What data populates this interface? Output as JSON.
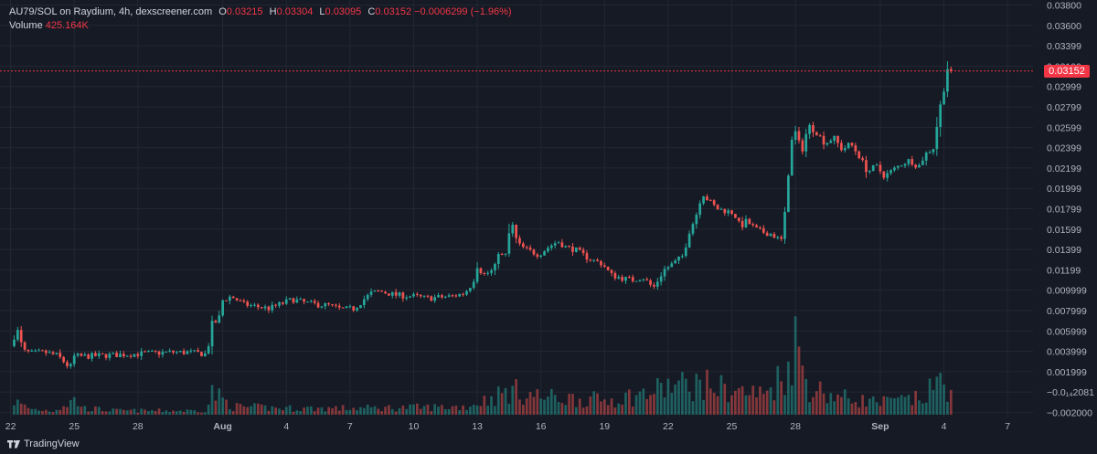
{
  "header": {
    "symbol": "AU79/SOL on Raydium, 4h, dexscreener.com",
    "ohlc": {
      "o_label": "O",
      "o": "0.03215",
      "h_label": "H",
      "h": "0.03304",
      "l_label": "L",
      "l": "0.03095",
      "c_label": "C",
      "c": "0.03152",
      "change": "−0.0006299 (−1.96%)"
    },
    "volume_label": "Volume",
    "volume_value": "425.164K"
  },
  "price_tag": "0.03152",
  "footer": {
    "logo_text": "TradingView",
    "logo_icon": "tradingview-logo-icon"
  },
  "colors": {
    "up": "#26a69a",
    "down": "#ef5350",
    "background": "#161a25",
    "grid": "#232733",
    "last_price": "#f23645"
  },
  "chart_data": {
    "type": "candlestick",
    "interval": "4h",
    "last_price": 0.03152,
    "ylim": [
      -0.0025,
      0.0385
    ],
    "y_tick_labels": [
      "0.03800",
      "0.03600",
      "0.03399",
      "0.03199",
      "0.02999",
      "0.02799",
      "0.02599",
      "0.02399",
      "0.02199",
      "0.01999",
      "0.01799",
      "0.01599",
      "0.01399",
      "0.01199",
      "0.009999",
      "0.007999",
      "0.005999",
      "0.003999",
      "0.001999",
      "−0.0₁₄2081",
      "−0.002000"
    ],
    "y_tick_values": [
      0.038,
      0.036,
      0.034,
      0.032,
      0.03,
      0.028,
      0.026,
      0.024,
      0.022,
      0.02,
      0.018,
      0.016,
      0.014,
      0.012,
      0.01,
      0.008,
      0.006,
      0.004,
      0.002,
      0.0,
      -0.002
    ],
    "x_ticks": [
      {
        "label": "22",
        "day": 0
      },
      {
        "label": "25",
        "day": 3
      },
      {
        "label": "28",
        "day": 6
      },
      {
        "label": "Aug",
        "day": 10
      },
      {
        "label": "4",
        "day": 13
      },
      {
        "label": "7",
        "day": 16
      },
      {
        "label": "10",
        "day": 19
      },
      {
        "label": "13",
        "day": 22
      },
      {
        "label": "16",
        "day": 25
      },
      {
        "label": "19",
        "day": 28
      },
      {
        "label": "22",
        "day": 31
      },
      {
        "label": "25",
        "day": 34
      },
      {
        "label": "28",
        "day": 37
      },
      {
        "label": "Sep",
        "day": 41
      },
      {
        "label": "4",
        "day": 44
      },
      {
        "label": "7",
        "day": 47
      }
    ],
    "xlim_days": [
      -0.5,
      48.2
    ],
    "close_path": [
      [
        0.0,
        0.0045
      ],
      [
        0.3,
        0.0062
      ],
      [
        0.6,
        0.004
      ],
      [
        1.0,
        0.0038
      ],
      [
        1.6,
        0.0039
      ],
      [
        2.2,
        0.0036
      ],
      [
        2.6,
        0.0028
      ],
      [
        2.8,
        0.0023
      ],
      [
        3.0,
        0.0035
      ],
      [
        3.5,
        0.0035
      ],
      [
        4.5,
        0.0036
      ],
      [
        5.5,
        0.0037
      ],
      [
        6.5,
        0.0038
      ],
      [
        7.5,
        0.0039
      ],
      [
        8.4,
        0.0039
      ],
      [
        9.3,
        0.0037
      ],
      [
        9.4,
        0.0066
      ],
      [
        9.8,
        0.007
      ],
      [
        10.0,
        0.009
      ],
      [
        10.4,
        0.0094
      ],
      [
        11.0,
        0.0086
      ],
      [
        11.6,
        0.0084
      ],
      [
        12.2,
        0.0082
      ],
      [
        12.8,
        0.0087
      ],
      [
        13.3,
        0.0091
      ],
      [
        13.8,
        0.0088
      ],
      [
        14.4,
        0.0086
      ],
      [
        15.0,
        0.0085
      ],
      [
        15.6,
        0.0081
      ],
      [
        16.2,
        0.0082
      ],
      [
        16.7,
        0.0092
      ],
      [
        17.0,
        0.0097
      ],
      [
        17.4,
        0.0099
      ],
      [
        18.2,
        0.0095
      ],
      [
        19.0,
        0.0094
      ],
      [
        19.6,
        0.0092
      ],
      [
        20.2,
        0.0093
      ],
      [
        20.8,
        0.0094
      ],
      [
        21.4,
        0.0097
      ],
      [
        21.8,
        0.0108
      ],
      [
        22.0,
        0.0124
      ],
      [
        22.3,
        0.0115
      ],
      [
        22.8,
        0.012
      ],
      [
        23.0,
        0.0138
      ],
      [
        23.3,
        0.013
      ],
      [
        23.6,
        0.0168
      ],
      [
        23.9,
        0.0145
      ],
      [
        24.3,
        0.014
      ],
      [
        24.9,
        0.0135
      ],
      [
        25.4,
        0.0143
      ],
      [
        25.8,
        0.0148
      ],
      [
        26.2,
        0.0142
      ],
      [
        26.6,
        0.014
      ],
      [
        27.1,
        0.0133
      ],
      [
        27.5,
        0.0129
      ],
      [
        27.9,
        0.0126
      ],
      [
        28.3,
        0.0115
      ],
      [
        28.8,
        0.0112
      ],
      [
        29.3,
        0.011
      ],
      [
        29.8,
        0.0113
      ],
      [
        30.3,
        0.0102
      ],
      [
        30.8,
        0.012
      ],
      [
        31.3,
        0.0127
      ],
      [
        31.7,
        0.0134
      ],
      [
        32.0,
        0.0158
      ],
      [
        32.3,
        0.0172
      ],
      [
        32.6,
        0.0196
      ],
      [
        32.9,
        0.0188
      ],
      [
        33.3,
        0.018
      ],
      [
        33.7,
        0.0178
      ],
      [
        34.1,
        0.0176
      ],
      [
        34.4,
        0.0162
      ],
      [
        34.7,
        0.0168
      ],
      [
        35.1,
        0.016
      ],
      [
        35.5,
        0.0157
      ],
      [
        35.9,
        0.0155
      ],
      [
        36.2,
        0.015
      ],
      [
        36.4,
        0.0149
      ],
      [
        36.6,
        0.02
      ],
      [
        36.8,
        0.0245
      ],
      [
        37.0,
        0.0255
      ],
      [
        37.3,
        0.0236
      ],
      [
        37.6,
        0.0262
      ],
      [
        38.0,
        0.0255
      ],
      [
        38.4,
        0.0244
      ],
      [
        38.8,
        0.025
      ],
      [
        39.2,
        0.0238
      ],
      [
        39.6,
        0.0244
      ],
      [
        40.0,
        0.0232
      ],
      [
        40.4,
        0.0216
      ],
      [
        40.8,
        0.0222
      ],
      [
        41.2,
        0.0212
      ],
      [
        41.6,
        0.0218
      ],
      [
        42.0,
        0.0224
      ],
      [
        42.4,
        0.0228
      ],
      [
        42.8,
        0.0221
      ],
      [
        43.1,
        0.0233
      ],
      [
        43.5,
        0.024
      ],
      [
        43.8,
        0.0278
      ],
      [
        44.0,
        0.0298
      ],
      [
        44.2,
        0.0322
      ],
      [
        44.4,
        0.0315
      ]
    ],
    "volume_path": [
      [
        0.0,
        0.2
      ],
      [
        0.5,
        0.12
      ],
      [
        1.0,
        0.07
      ],
      [
        2.0,
        0.05
      ],
      [
        3.0,
        0.18
      ],
      [
        3.5,
        0.08
      ],
      [
        5.0,
        0.05
      ],
      [
        7.0,
        0.05
      ],
      [
        9.3,
        0.05
      ],
      [
        9.4,
        0.3
      ],
      [
        10.5,
        0.1
      ],
      [
        13.0,
        0.08
      ],
      [
        16.0,
        0.08
      ],
      [
        19.0,
        0.09
      ],
      [
        21.5,
        0.1
      ],
      [
        23.6,
        0.3
      ],
      [
        25.0,
        0.22
      ],
      [
        28.0,
        0.18
      ],
      [
        30.0,
        0.26
      ],
      [
        31.0,
        0.35
      ],
      [
        32.6,
        0.38
      ],
      [
        34.0,
        0.3
      ],
      [
        35.5,
        0.25
      ],
      [
        36.6,
        0.55
      ],
      [
        37.0,
        0.9
      ],
      [
        37.6,
        0.35
      ],
      [
        39.0,
        0.22
      ],
      [
        41.0,
        0.15
      ],
      [
        43.0,
        0.2
      ],
      [
        43.8,
        0.42
      ],
      [
        44.2,
        0.35
      ],
      [
        44.4,
        0.28
      ]
    ]
  }
}
